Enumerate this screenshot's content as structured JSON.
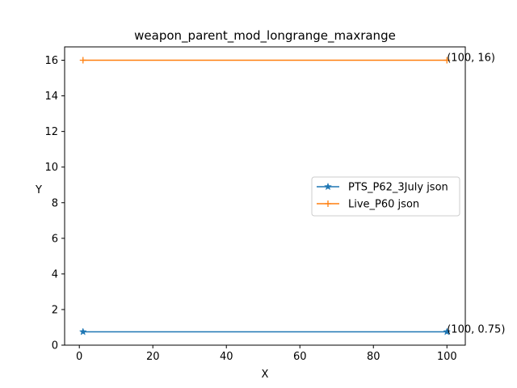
{
  "chart_data": {
    "type": "line",
    "title": "weapon_parent_mod_longrange_maxrange",
    "xlabel": "X",
    "ylabel": "Y",
    "xlim": [
      -4,
      105
    ],
    "ylim": [
      0,
      16.75
    ],
    "xticks": [
      0,
      20,
      40,
      60,
      80,
      100
    ],
    "yticks": [
      0,
      2,
      4,
      6,
      8,
      10,
      12,
      14,
      16
    ],
    "grid": false,
    "legend_position": "center-right",
    "series": [
      {
        "name": "PTS_P62_3July json",
        "color": "#1f77b4",
        "marker": "star",
        "x": [
          1,
          100
        ],
        "y": [
          0.75,
          0.75
        ]
      },
      {
        "name": "Live_P60 json",
        "color": "#ff7f0e",
        "marker": "plus",
        "x": [
          1,
          100
        ],
        "y": [
          16,
          16
        ]
      }
    ],
    "annotations": [
      {
        "text": "(100, 16)",
        "x": 100,
        "y": 16
      },
      {
        "text": "(100, 0.75)",
        "x": 100,
        "y": 0.75
      }
    ]
  }
}
